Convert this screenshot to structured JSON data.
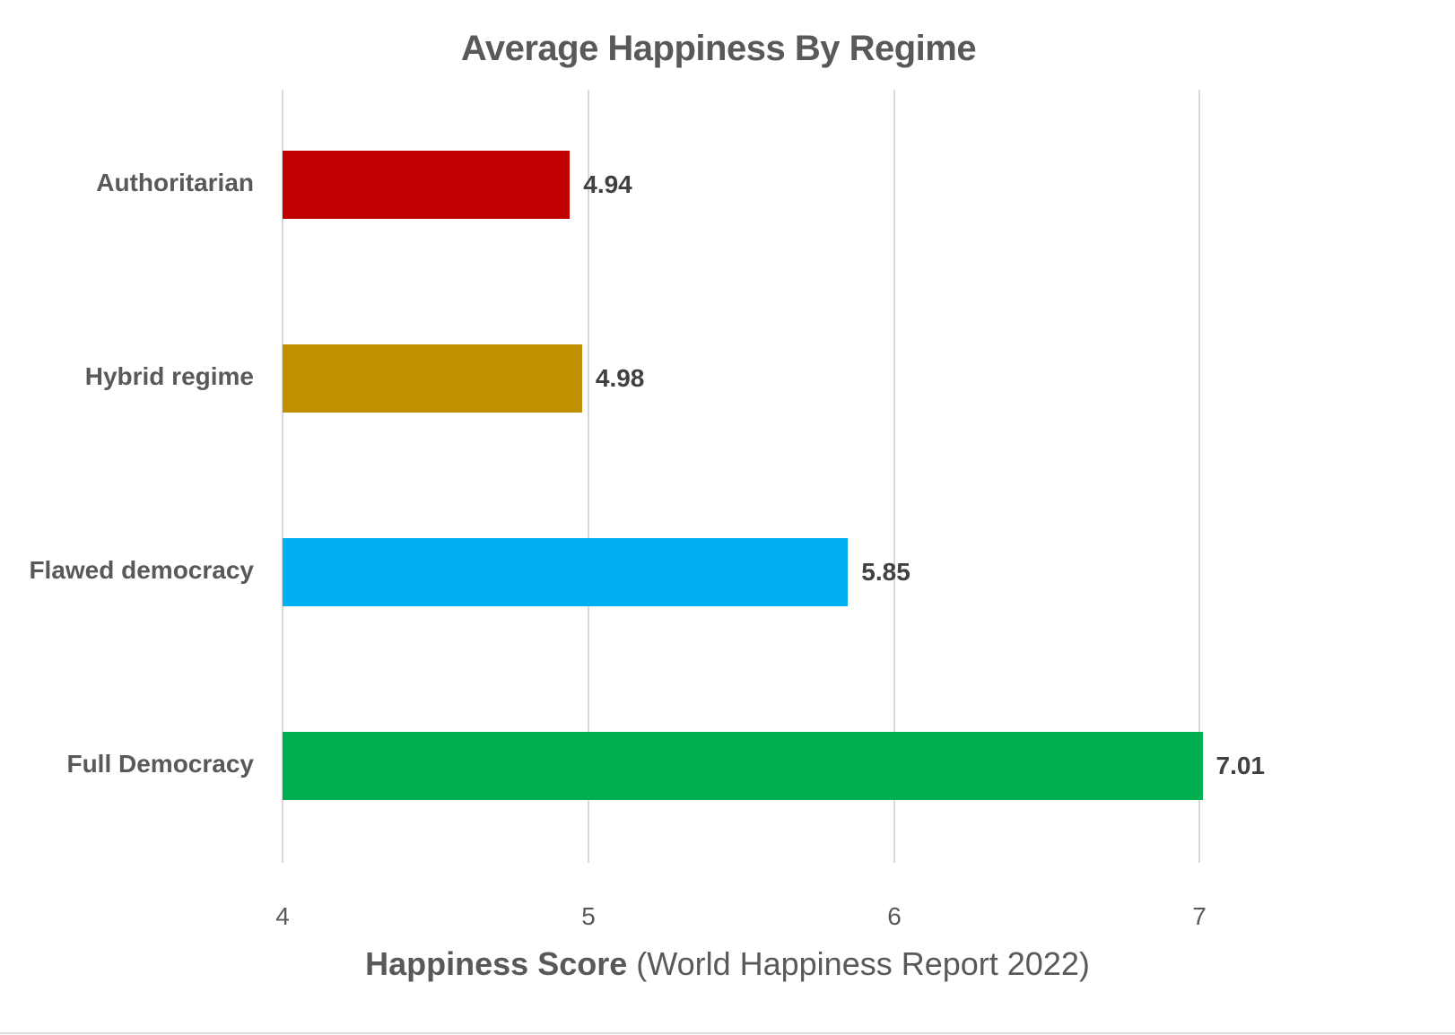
{
  "chart_data": {
    "type": "bar",
    "orientation": "horizontal",
    "title": "Average Happiness By Regime",
    "categories": [
      "Authoritarian",
      "Hybrid regime",
      "Flawed democracy",
      "Full Democracy"
    ],
    "values": [
      4.94,
      4.98,
      5.85,
      7.01
    ],
    "value_labels": [
      "4.94",
      "4.98",
      "5.85",
      "7.01"
    ],
    "colors": [
      "#c00000",
      "#bf9000",
      "#00b0f0",
      "#00b050"
    ],
    "xlabel_bold": "Happiness Score",
    "xlabel_rest": " (World Happiness Report 2022)",
    "xlabel": "Happiness Score (World Happiness Report 2022)",
    "ylabel": "",
    "xlim": [
      4,
      7.2
    ],
    "xticks": [
      "4",
      "5",
      "6",
      "7"
    ],
    "grid": true,
    "legend": null
  }
}
